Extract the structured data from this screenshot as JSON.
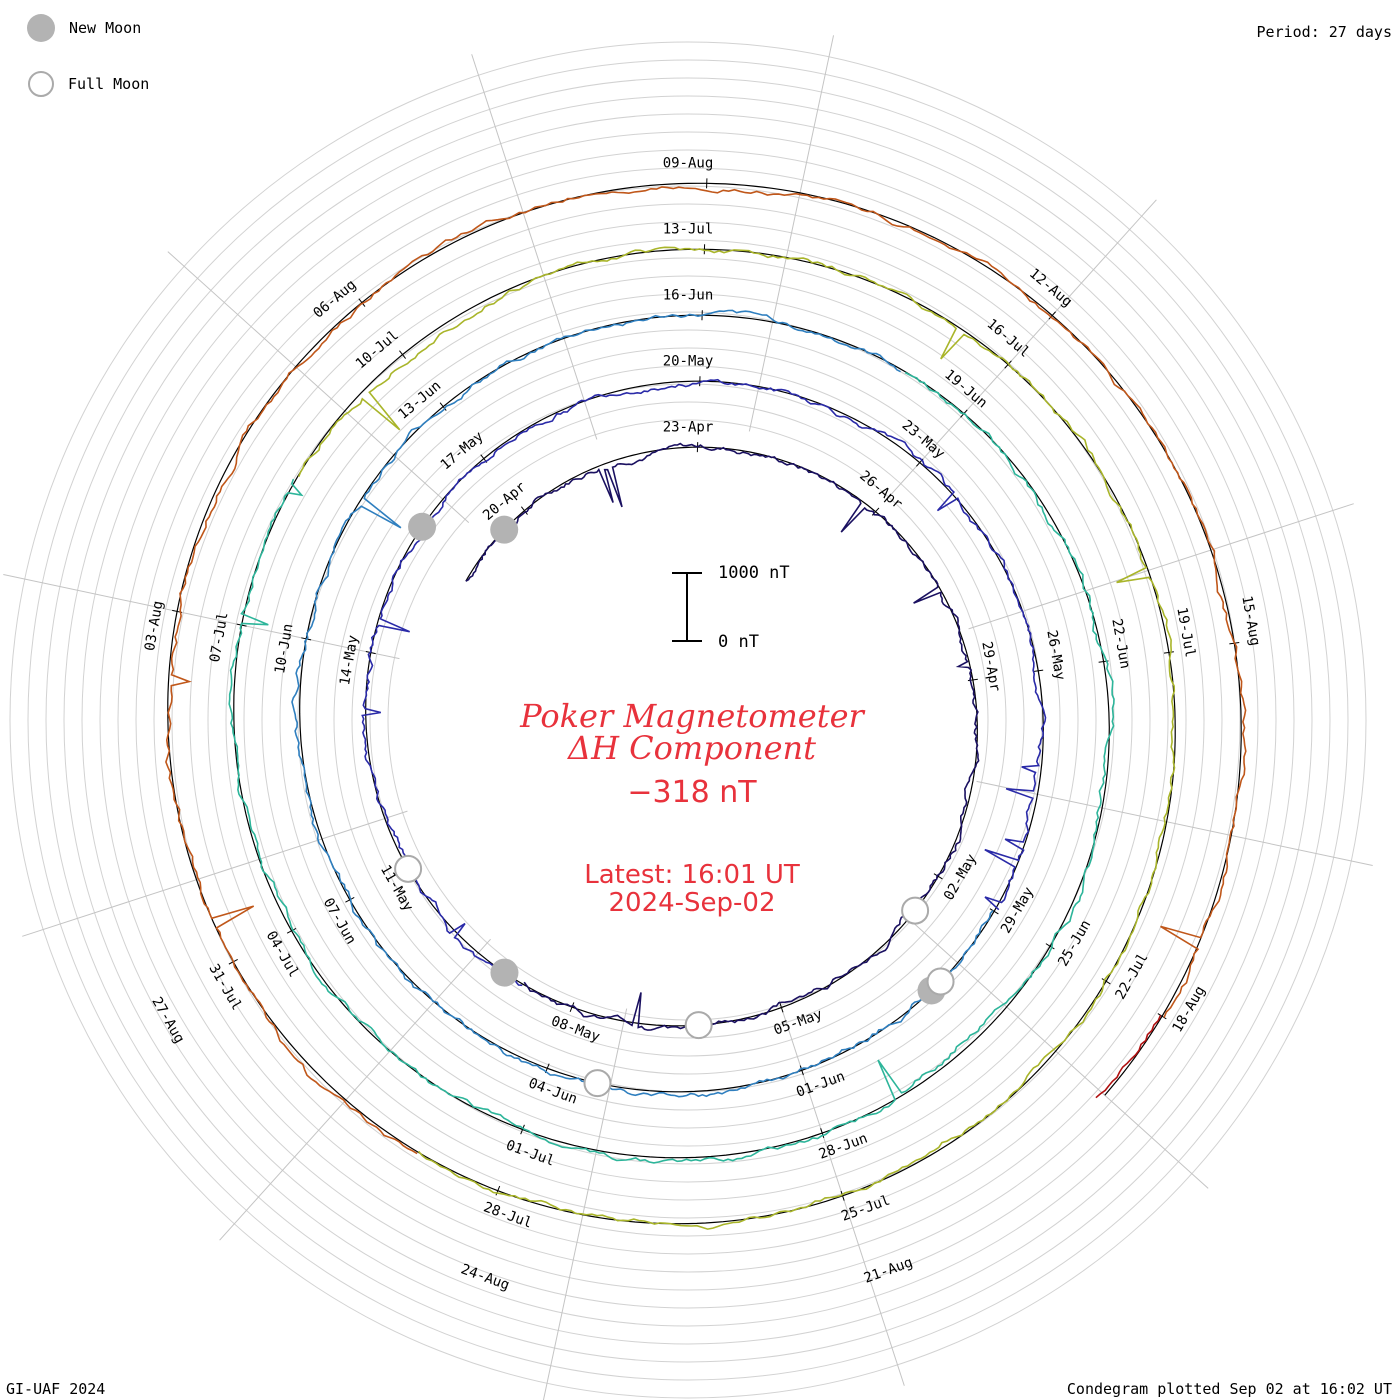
{
  "legend": {
    "new_moon_label": "New Moon",
    "full_moon_label": "Full Moon",
    "new_moon_color": "#b3b3b3",
    "full_moon_color": "#aaaaaa"
  },
  "period_label": "Period: 27 days",
  "center": {
    "title_line1": "Poker Magnetometer",
    "title_line2": "ΔH Component",
    "current_value": "−318 nT",
    "latest_label": "Latest: 16:01 UT",
    "latest_date": "2024-Sep-02",
    "text_color": "#e8323c"
  },
  "scale_bar": {
    "top_label": "1000 nT",
    "bottom_label": "0 nT",
    "value_nT": 1000
  },
  "footer": {
    "left": "GI-UAF 2024",
    "right": "Condegram plotted Sep 02 at 16:02 UT"
  },
  "chart_data": {
    "type": "line",
    "title": "Poker Magnetometer ΔH Component",
    "period_days": 27,
    "series": [
      {
        "color": "#1a1060",
        "start_date": "2024-04-19",
        "end_date": "2024-05-16"
      },
      {
        "color": "#2a2aa8",
        "start_date": "2024-05-16",
        "end_date": "2024-06-12"
      },
      {
        "color": "#2f7fbf",
        "start_date": "2024-06-12",
        "end_date": "2024-07-09"
      },
      {
        "color": "#2db59a",
        "start_date": "2024-07-09",
        "end_date": "2024-08-05"
      },
      {
        "color": "#a9b52a",
        "start_date": "2024-08-05",
        "end_date": "2024-09-01"
      },
      {
        "color": "#c0571a",
        "start_date": "2024-08-05",
        "end_date": "2024-09-01"
      },
      {
        "color": "#b01010",
        "start_date": "2024-08-22",
        "end_date": "2024-09-02"
      }
    ],
    "date_labels": [
      {
        "ring": 0,
        "items": [
          "20-Apr",
          "23-Apr",
          "26-Apr",
          "29-Apr",
          "02-May",
          "05-May",
          "08-May",
          "11-May",
          "14-May"
        ]
      },
      {
        "ring": 1,
        "items": [
          "17-May",
          "20-May",
          "23-May",
          "26-May",
          "29-May",
          "01-Jun",
          "04-Jun",
          "07-Jun",
          "10-Jun"
        ]
      },
      {
        "ring": 2,
        "items": [
          "13-Jun",
          "16-Jun",
          "19-Jun",
          "22-Jun",
          "25-Jun",
          "28-Jun",
          "01-Jul",
          "04-Jul",
          "07-Jul"
        ]
      },
      {
        "ring": 3,
        "items": [
          "10-Jul",
          "13-Jul",
          "16-Jul",
          "19-Jul",
          "22-Jul",
          "25-Jul",
          "28-Jul",
          "31-Jul",
          "03-Aug"
        ]
      },
      {
        "ring": 4,
        "items": [
          "06-Aug",
          "09-Aug",
          "12-Aug",
          "15-Aug",
          "18-Aug",
          "21-Aug",
          "24-Aug",
          "27-Aug"
        ]
      }
    ],
    "current_value_nT": -318,
    "scale_nT": 1000
  }
}
